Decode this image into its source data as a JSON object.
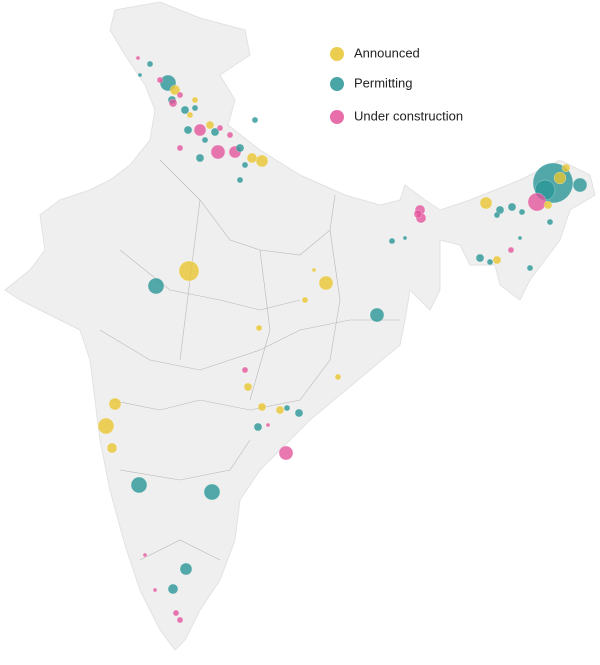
{
  "legend": {
    "items": [
      {
        "label": "Announced",
        "color": "#e8c531"
      },
      {
        "label": "Permitting",
        "color": "#2a9696"
      },
      {
        "label": "Under construction",
        "color": "#e3559c"
      }
    ]
  }
}
